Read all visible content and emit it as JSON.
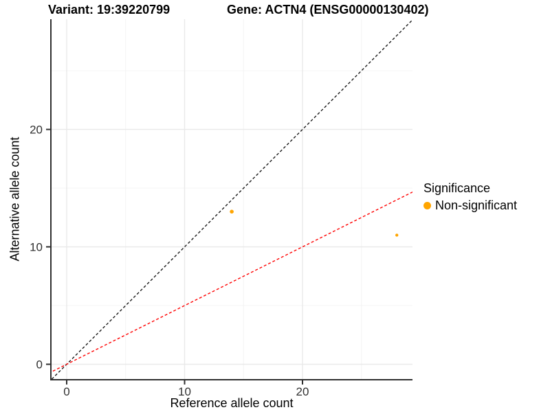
{
  "header": {
    "title_left": "Variant: 19:39220799",
    "title_right": "Gene: ACTN4 (ENSG00000130402)"
  },
  "chart_data": {
    "type": "scatter",
    "xlabel": "Reference allele count",
    "ylabel": "Alternative allele count",
    "xlim": [
      -1.4,
      29.4
    ],
    "ylim": [
      -1.4,
      29.4
    ],
    "x_ticks": [
      0,
      10,
      20
    ],
    "y_ticks": [
      0,
      10,
      20
    ],
    "x_minor_ticks": [
      5,
      15,
      25
    ],
    "y_minor_ticks": [
      5,
      15,
      25
    ],
    "grid": true,
    "legend_position": "right",
    "points": [
      {
        "x": 14,
        "y": 13,
        "r": 2.8,
        "color": "#FFA500",
        "label": "Non-significant"
      },
      {
        "x": 28,
        "y": 11,
        "r": 2.2,
        "color": "#FFA500",
        "label": "Non-significant"
      }
    ],
    "lines": [
      {
        "name": "identity-line",
        "slope": 1,
        "intercept": 0,
        "color": "#1A1A1A",
        "style": "dashed"
      },
      {
        "name": "expected-ratio-line",
        "slope": 0.5,
        "intercept": 0,
        "color": "#FF0000",
        "style": "dashed"
      }
    ],
    "legend": {
      "title": "Significance",
      "items": [
        {
          "label": "Non-significant",
          "color": "#FFA500"
        }
      ]
    }
  },
  "colors": {
    "grid_major": "#E9E9E9",
    "grid_minor": "#F4F4F4",
    "axis": "#2F2F2F",
    "tick_label": "#303030",
    "background": "#FFFFFF"
  }
}
